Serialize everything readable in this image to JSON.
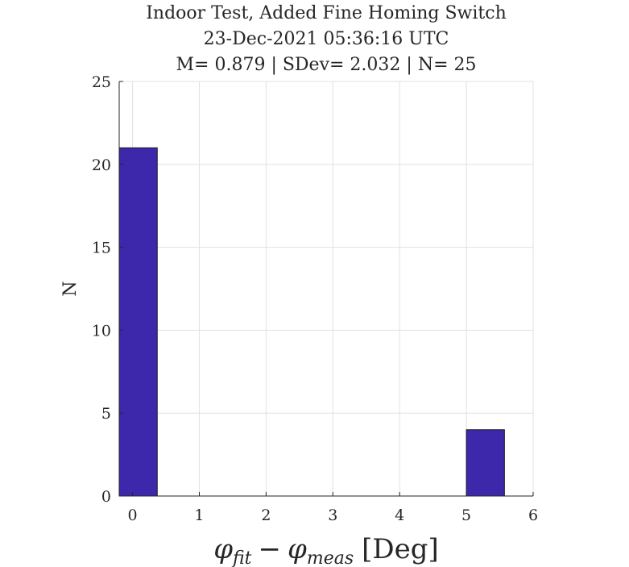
{
  "chart_data": {
    "type": "bar",
    "title_lines": [
      "Indoor Test, Added Fine Homing Switch",
      "23-Dec-2021 05:36:16 UTC",
      "M= 0.879 | SDev= 2.032 | N= 25"
    ],
    "xlabel": {
      "phi": "φ",
      "sub1": "fit",
      "minus": "−",
      "sub2": "meas",
      "unit": "[Deg]"
    },
    "ylabel": "N",
    "xlim": [
      -0.2,
      6
    ],
    "ylim": [
      0,
      25
    ],
    "xticks": [
      0,
      1,
      2,
      3,
      4,
      5,
      6
    ],
    "yticks": [
      0,
      5,
      10,
      15,
      20,
      25
    ],
    "grid": true,
    "bins": [
      {
        "x0": -0.2,
        "x1": 0.37,
        "count": 21
      },
      {
        "x0": 5.0,
        "x1": 5.57,
        "count": 4
      }
    ],
    "bar_color": "#3d27ab"
  }
}
